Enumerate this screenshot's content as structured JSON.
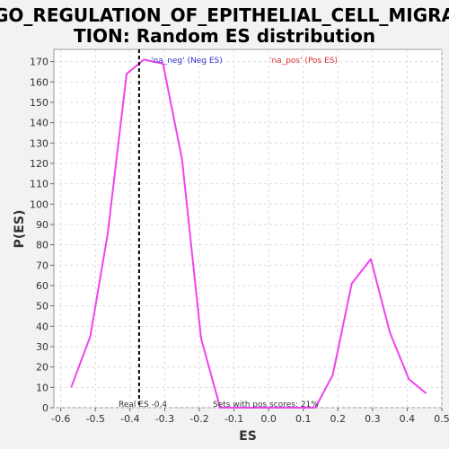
{
  "chart_data": {
    "type": "line",
    "title_lines": [
      "GO_REGULATION_OF_EPITHELIAL_CELL_MIGRA",
      "TION: Random ES distribution"
    ],
    "xlabel": "ES",
    "ylabel": "P(ES)",
    "xlim": [
      -0.62,
      0.5
    ],
    "ylim": [
      0,
      176
    ],
    "x_ticks": [
      -0.6,
      -0.5,
      -0.4,
      -0.3,
      -0.2,
      -0.1,
      0.0,
      0.1,
      0.2,
      0.3,
      0.4,
      0.5
    ],
    "y_ticks": [
      0,
      10,
      20,
      30,
      40,
      50,
      60,
      70,
      80,
      90,
      100,
      110,
      120,
      130,
      140,
      150,
      160,
      170
    ],
    "grid": true,
    "series": [
      {
        "color": "#ee44ee",
        "x": [
          -0.57,
          -0.515,
          -0.465,
          -0.41,
          -0.36,
          -0.305,
          -0.25,
          -0.195,
          -0.14,
          0.135,
          0.185,
          0.24,
          0.295,
          0.35,
          0.405,
          0.455
        ],
        "y": [
          10,
          35,
          85,
          164,
          171,
          169,
          122,
          34,
          0,
          0,
          16,
          61,
          73,
          37,
          14,
          7
        ]
      }
    ],
    "real_es_x": -0.374,
    "legend": [
      {
        "label": "'na_neg' (Neg ES)",
        "color": "#3333cc"
      },
      {
        "label": "'na_pos' (Pos ES)",
        "color": "#dd3333"
      }
    ],
    "annotations": {
      "real_es": "Real ES -0.4",
      "pos_scores": "Sets with pos scores: 21%"
    }
  }
}
